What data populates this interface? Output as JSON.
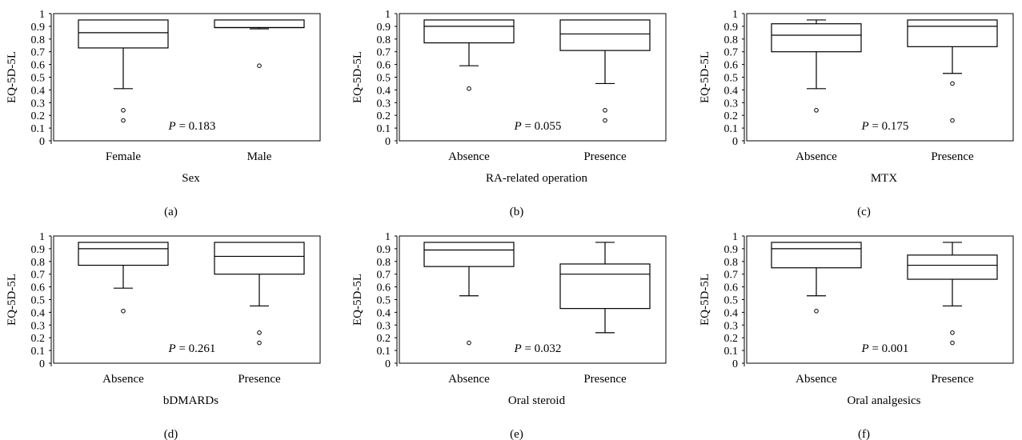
{
  "chart_data": [
    {
      "type": "box",
      "panel_label": "(a)",
      "xlabel": "Sex",
      "ylabel": "EQ-5D-5L",
      "ylim": [
        0,
        1
      ],
      "yticks": [
        "0",
        "0.1",
        "0.2",
        "0.3",
        "0.4",
        "0.5",
        "0.6",
        "0.7",
        "0.8",
        "0.9",
        "1"
      ],
      "p_symbol": "P",
      "p_text": " = 0.183",
      "groups": [
        {
          "label": "Female",
          "min": 0.41,
          "q1": 0.73,
          "median": 0.85,
          "q3": 0.95,
          "max": 0.95,
          "outliers": [
            0.24,
            0.16
          ]
        },
        {
          "label": "Male",
          "min": 0.88,
          "q1": 0.89,
          "median": 0.89,
          "q3": 0.95,
          "max": 0.95,
          "outliers": [
            0.59
          ]
        }
      ]
    },
    {
      "type": "box",
      "panel_label": "(b)",
      "xlabel": "RA-related operation",
      "ylabel": "EQ-5D-5L",
      "ylim": [
        0,
        1
      ],
      "yticks": [
        "0",
        "0.1",
        "0.2",
        "0.3",
        "0.4",
        "0.5",
        "0.6",
        "0.7",
        "0.8",
        "0.9",
        "1"
      ],
      "p_symbol": "P",
      "p_text": " = 0.055",
      "groups": [
        {
          "label": "Absence",
          "min": 0.59,
          "q1": 0.77,
          "median": 0.9,
          "q3": 0.95,
          "max": 0.95,
          "outliers": [
            0.41
          ]
        },
        {
          "label": "Presence",
          "min": 0.45,
          "q1": 0.71,
          "median": 0.84,
          "q3": 0.95,
          "max": 0.95,
          "outliers": [
            0.24,
            0.16
          ]
        }
      ]
    },
    {
      "type": "box",
      "panel_label": "(c)",
      "xlabel": "MTX",
      "ylabel": "EQ-5D-5L",
      "ylim": [
        0,
        1
      ],
      "yticks": [
        "0",
        "0.1",
        "0.2",
        "0.3",
        "0.4",
        "0.5",
        "0.6",
        "0.7",
        "0.8",
        "0.9",
        "1"
      ],
      "p_symbol": "P",
      "p_text": " = 0.175",
      "groups": [
        {
          "label": "Absence",
          "min": 0.41,
          "q1": 0.7,
          "median": 0.83,
          "q3": 0.92,
          "max": 0.95,
          "outliers": [
            0.24
          ]
        },
        {
          "label": "Presence",
          "min": 0.53,
          "q1": 0.74,
          "median": 0.9,
          "q3": 0.95,
          "max": 0.95,
          "outliers": [
            0.45,
            0.16
          ]
        }
      ]
    },
    {
      "type": "box",
      "panel_label": "(d)",
      "xlabel": "bDMARDs",
      "ylabel": "EQ-5D-5L",
      "ylim": [
        0,
        1
      ],
      "yticks": [
        "0",
        "0.1",
        "0.2",
        "0.3",
        "0.4",
        "0.5",
        "0.6",
        "0.7",
        "0.8",
        "0.9",
        "1"
      ],
      "p_symbol": "P",
      "p_text": " = 0.261",
      "groups": [
        {
          "label": "Absence",
          "min": 0.59,
          "q1": 0.77,
          "median": 0.9,
          "q3": 0.95,
          "max": 0.95,
          "outliers": [
            0.41
          ]
        },
        {
          "label": "Presence",
          "min": 0.45,
          "q1": 0.7,
          "median": 0.84,
          "q3": 0.95,
          "max": 0.95,
          "outliers": [
            0.24,
            0.16
          ]
        }
      ]
    },
    {
      "type": "box",
      "panel_label": "(e)",
      "xlabel": "Oral steroid",
      "ylabel": "EQ-5D-5L",
      "ylim": [
        0,
        1
      ],
      "yticks": [
        "0",
        "0.1",
        "0.2",
        "0.3",
        "0.4",
        "0.5",
        "0.6",
        "0.7",
        "0.8",
        "0.9",
        "1"
      ],
      "p_symbol": "P",
      "p_text": " = 0.032",
      "groups": [
        {
          "label": "Absence",
          "min": 0.53,
          "q1": 0.76,
          "median": 0.89,
          "q3": 0.95,
          "max": 0.95,
          "outliers": [
            0.16
          ]
        },
        {
          "label": "Presence",
          "min": 0.24,
          "q1": 0.43,
          "median": 0.7,
          "q3": 0.78,
          "max": 0.95,
          "outliers": []
        }
      ]
    },
    {
      "type": "box",
      "panel_label": "(f)",
      "xlabel": "Oral analgesics",
      "ylabel": "EQ-5D-5L",
      "ylim": [
        0,
        1
      ],
      "yticks": [
        "0",
        "0.1",
        "0.2",
        "0.3",
        "0.4",
        "0.5",
        "0.6",
        "0.7",
        "0.8",
        "0.9",
        "1"
      ],
      "p_symbol": "P",
      "p_text": " = 0.001",
      "groups": [
        {
          "label": "Absence",
          "min": 0.53,
          "q1": 0.75,
          "median": 0.9,
          "q3": 0.95,
          "max": 0.95,
          "outliers": [
            0.41
          ]
        },
        {
          "label": "Presence",
          "min": 0.45,
          "q1": 0.66,
          "median": 0.77,
          "q3": 0.85,
          "max": 0.95,
          "outliers": [
            0.24,
            0.16
          ]
        }
      ]
    }
  ]
}
